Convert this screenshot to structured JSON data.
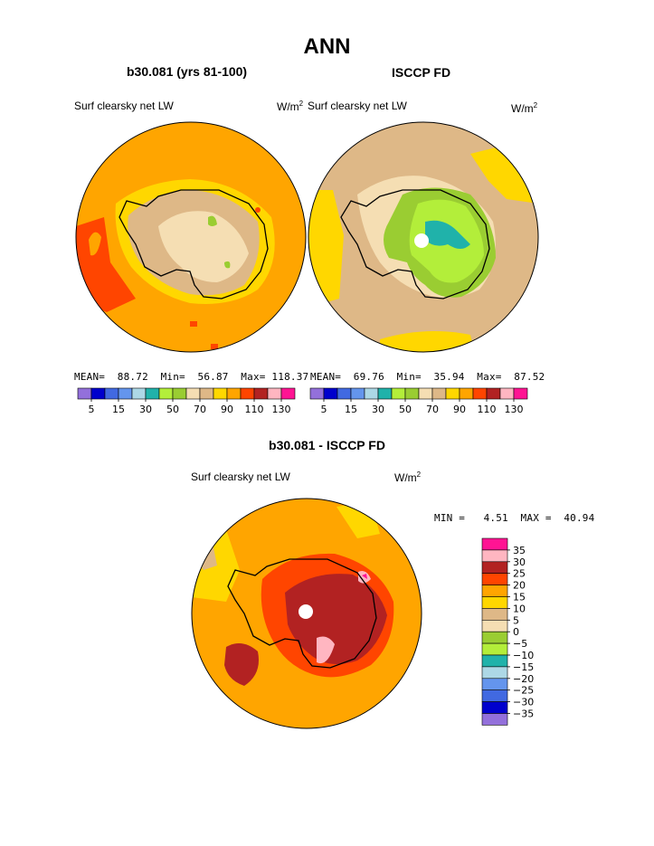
{
  "title": "ANN",
  "panels": {
    "left": {
      "title": "b30.081 (yrs 81-100)",
      "variable": "Surf clearsky net LW",
      "units": "W/m",
      "units_sup": "2",
      "stats": {
        "mean_label": "MEAN=",
        "mean": "88.72",
        "min_label": "Min=",
        "min": "56.87",
        "max_label": "Max=",
        "max": "118.37"
      }
    },
    "right": {
      "title": "ISCCP FD",
      "variable": "Surf clearsky net LW",
      "units": "W/m",
      "units_sup": "2",
      "stats": {
        "mean_label": "MEAN=",
        "mean": "69.76",
        "min_label": "Min=",
        "min": "35.94",
        "max_label": "Max=",
        "max": "87.52"
      }
    },
    "diff": {
      "title": "b30.081 - ISCCP FD",
      "variable": "Surf clearsky net LW",
      "units": "W/m",
      "units_sup": "2",
      "stats": {
        "min_label": "MIN =",
        "min": "4.51",
        "max_label": "MAX =",
        "max": "40.94"
      }
    }
  },
  "colors": {
    "abs_scale": [
      "#9370db",
      "#0000cd",
      "#4169e1",
      "#6495ed",
      "#add8e6",
      "#20b2aa",
      "#b3ee3a",
      "#9acd32",
      "#f5deb3",
      "#deb887",
      "#ffd700",
      "#ffa500",
      "#ff4500",
      "#b22222",
      "#ffb6c1",
      "#ff1493"
    ],
    "diff_scale": [
      "#9370db",
      "#0000cd",
      "#4169e1",
      "#6495ed",
      "#add8e6",
      "#20b2aa",
      "#b3ee3a",
      "#9acd32",
      "#f5deb3",
      "#deb887",
      "#ffd700",
      "#ffa500",
      "#ff4500",
      "#b22222",
      "#ffb6c1",
      "#ff1493"
    ]
  },
  "chart_data": [
    {
      "type": "heatmap",
      "title": "b30.081 (yrs 81-100)",
      "variable": "Surf clearsky net LW",
      "units": "W/m2",
      "projection": "south polar stereographic",
      "mean": 88.72,
      "min": 56.87,
      "max": 118.37,
      "colorbar_levels": [
        5,
        10,
        15,
        20,
        30,
        40,
        50,
        60,
        70,
        80,
        90,
        100,
        110,
        120,
        130
      ],
      "colorbar_tick_labels": [
        "5",
        "15",
        "30",
        "50",
        "70",
        "90",
        "110",
        "130"
      ]
    },
    {
      "type": "heatmap",
      "title": "ISCCP FD",
      "variable": "Surf clearsky net LW",
      "units": "W/m2",
      "projection": "south polar stereographic",
      "mean": 69.76,
      "min": 35.94,
      "max": 87.52,
      "colorbar_levels": [
        5,
        10,
        15,
        20,
        30,
        40,
        50,
        60,
        70,
        80,
        90,
        100,
        110,
        120,
        130
      ],
      "colorbar_tick_labels": [
        "5",
        "15",
        "30",
        "50",
        "70",
        "90",
        "110",
        "130"
      ]
    },
    {
      "type": "heatmap",
      "title": "b30.081 - ISCCP FD",
      "variable": "Surf clearsky net LW",
      "units": "W/m2",
      "projection": "south polar stereographic",
      "min": 4.51,
      "max": 40.94,
      "colorbar_levels": [
        35,
        30,
        25,
        20,
        15,
        10,
        5,
        0,
        -5,
        -10,
        -15,
        -20,
        -25,
        -30,
        -35
      ],
      "colorbar_tick_labels": [
        "35",
        "30",
        "25",
        "20",
        "15",
        "10",
        "5",
        "0",
        "−5",
        "−10",
        "−15",
        "−20",
        "−25",
        "−30",
        "−35"
      ]
    }
  ]
}
